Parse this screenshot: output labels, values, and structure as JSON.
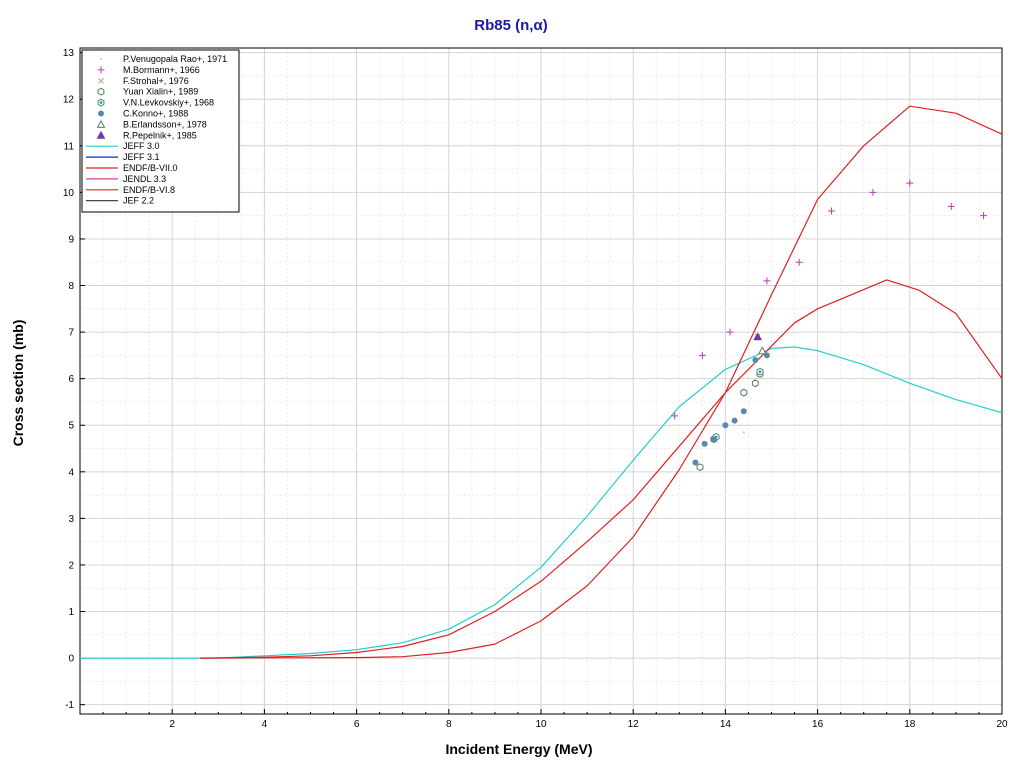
{
  "chart_data": {
    "type": "scatter",
    "title": "Rb85 (n,α)",
    "xlabel": "Incident Energy (MeV)",
    "ylabel": "Cross section (mb)",
    "xlim": [
      0,
      20
    ],
    "ylim": [
      -1.2,
      13.1
    ],
    "x_ticks": [
      2,
      4,
      6,
      8,
      10,
      12,
      14,
      16,
      18,
      20
    ],
    "y_ticks": [
      -1,
      0,
      1,
      2,
      3,
      4,
      5,
      6,
      7,
      8,
      9,
      10,
      11,
      12,
      13
    ],
    "grid": true,
    "legend_position": "top-left",
    "series": [
      {
        "name": "P.Venugopala Rao+, 1971",
        "kind": "points",
        "marker": "dot",
        "color": "#c8a0c8",
        "points": [
          [
            14.4,
            4.85
          ]
        ]
      },
      {
        "name": "M.Bormann+, 1966",
        "kind": "points",
        "marker": "plus",
        "color": "#b040b0",
        "points": [
          [
            12.9,
            5.2
          ],
          [
            13.5,
            6.5
          ],
          [
            14.1,
            7.0
          ],
          [
            14.9,
            8.1
          ],
          [
            15.6,
            8.5
          ],
          [
            16.3,
            9.6
          ],
          [
            17.2,
            10.0
          ],
          [
            18.0,
            10.2
          ],
          [
            18.9,
            9.7
          ],
          [
            19.6,
            9.5
          ]
        ]
      },
      {
        "name": "F.Strohal+, 1976",
        "kind": "points",
        "marker": "x",
        "color": "#a0a0a0",
        "points": [
          [
            14.7,
            6.9
          ]
        ]
      },
      {
        "name": "Yuan Xialin+, 1989",
        "kind": "points",
        "marker": "hex",
        "color": "#508050",
        "points": [
          [
            13.45,
            4.1
          ],
          [
            13.75,
            4.7
          ],
          [
            14.4,
            5.7
          ],
          [
            14.65,
            5.9
          ],
          [
            14.75,
            6.1
          ]
        ]
      },
      {
        "name": "V.N.Levkovskiy+, 1968",
        "kind": "points",
        "marker": "hexdot",
        "color": "#409080",
        "points": [
          [
            13.8,
            4.75
          ],
          [
            14.75,
            6.15
          ]
        ]
      },
      {
        "name": "C.Konno+, 1988",
        "kind": "points",
        "marker": "circle",
        "color": "#5a88b0",
        "points": [
          [
            13.35,
            4.2
          ],
          [
            13.55,
            4.6
          ],
          [
            13.75,
            4.7
          ],
          [
            14.0,
            5.0
          ],
          [
            14.2,
            5.1
          ],
          [
            14.4,
            5.3
          ],
          [
            14.65,
            6.4
          ],
          [
            14.9,
            6.5
          ]
        ]
      },
      {
        "name": "B.Erlandsson+, 1978",
        "kind": "points",
        "marker": "triangle-open",
        "color": "#608060",
        "points": [
          [
            14.8,
            6.6
          ]
        ]
      },
      {
        "name": "R.Pepelnik+, 1985",
        "kind": "points",
        "marker": "triangle",
        "color": "#6a3aa8",
        "points": [
          [
            14.7,
            6.9
          ]
        ]
      },
      {
        "name": "JEFF 3.0",
        "kind": "line",
        "color": "#20d0d0",
        "points": [
          [
            0,
            0
          ],
          [
            3,
            0
          ],
          [
            4,
            0.05
          ],
          [
            5,
            0.1
          ],
          [
            6,
            0.18
          ],
          [
            7,
            0.33
          ],
          [
            8,
            0.62
          ],
          [
            9,
            1.15
          ],
          [
            10,
            1.95
          ],
          [
            11,
            3.05
          ],
          [
            12,
            4.25
          ],
          [
            13,
            5.4
          ],
          [
            14,
            6.2
          ],
          [
            15,
            6.65
          ],
          [
            15.5,
            6.68
          ],
          [
            16,
            6.6
          ],
          [
            17,
            6.3
          ],
          [
            18,
            5.9
          ],
          [
            19,
            5.55
          ],
          [
            20,
            5.27
          ]
        ]
      },
      {
        "name": "JEFF 3.1",
        "kind": "line",
        "color": "#2020c0",
        "points": []
      },
      {
        "name": "ENDF/B-VII.0",
        "kind": "line",
        "color": "#e02020",
        "points": [
          [
            2.6,
            0
          ],
          [
            6,
            0.01
          ],
          [
            7,
            0.03
          ],
          [
            8,
            0.12
          ],
          [
            9,
            0.3
          ],
          [
            10,
            0.8
          ],
          [
            11,
            1.55
          ],
          [
            12,
            2.6
          ],
          [
            13,
            4.05
          ],
          [
            14,
            5.7
          ],
          [
            15,
            7.8
          ],
          [
            16,
            9.85
          ],
          [
            17,
            11.0
          ],
          [
            18,
            11.85
          ],
          [
            19,
            11.7
          ],
          [
            20,
            11.25
          ]
        ]
      },
      {
        "name": "JENDL 3.3",
        "kind": "line",
        "color": "#e04070",
        "points": []
      },
      {
        "name": "ENDF/B-VI.8",
        "kind": "line",
        "color": "#e02020",
        "points": [
          [
            2.6,
            0
          ],
          [
            4,
            0.02
          ],
          [
            5,
            0.05
          ],
          [
            6,
            0.12
          ],
          [
            7,
            0.25
          ],
          [
            8,
            0.5
          ],
          [
            9,
            1.0
          ],
          [
            10,
            1.65
          ],
          [
            11,
            2.5
          ],
          [
            12,
            3.4
          ],
          [
            13,
            4.55
          ],
          [
            14,
            5.7
          ],
          [
            15,
            6.7
          ],
          [
            15.5,
            7.2
          ],
          [
            16,
            7.5
          ],
          [
            17.5,
            8.12
          ],
          [
            18.2,
            7.9
          ],
          [
            19,
            7.4
          ],
          [
            20,
            6.0
          ]
        ]
      },
      {
        "name": "JEF 2.2",
        "kind": "line",
        "color": "#303030",
        "points": []
      }
    ]
  }
}
